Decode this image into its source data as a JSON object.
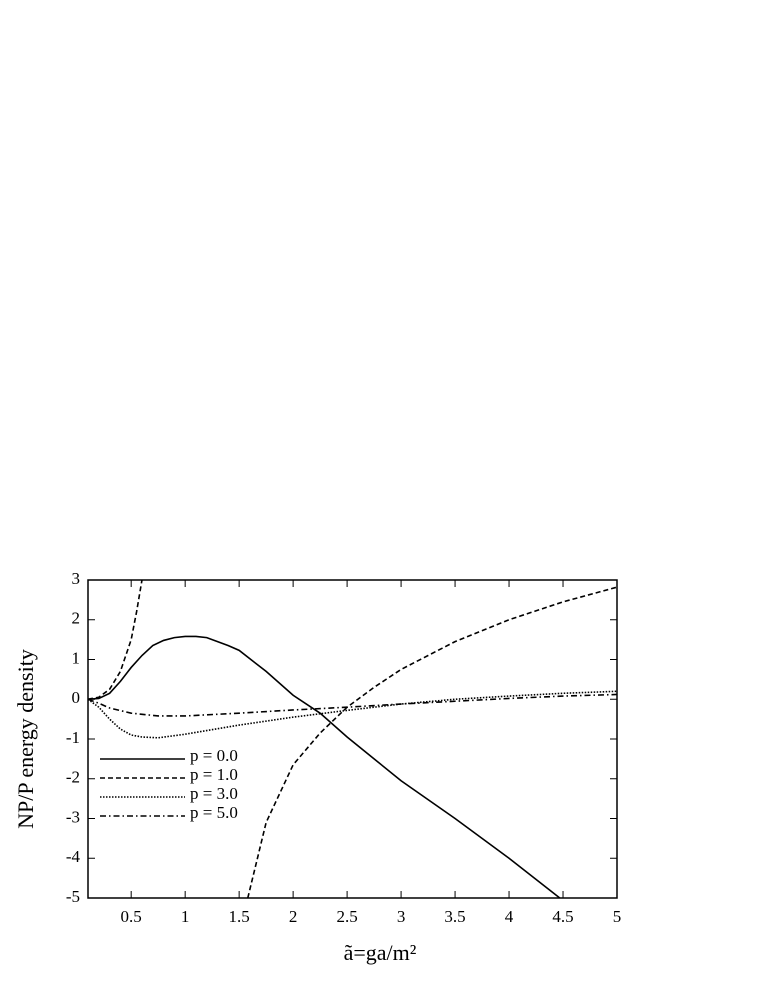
{
  "chart_data": {
    "type": "line",
    "xlabel": "ã=ga/m²",
    "ylabel": "NP/P energy density",
    "xlim": [
      0.1,
      5
    ],
    "ylim": [
      -5,
      3
    ],
    "xticks": [
      0.5,
      1,
      1.5,
      2,
      2.5,
      3,
      3.5,
      4,
      4.5,
      5
    ],
    "yticks": [
      -5,
      -4,
      -3,
      -2,
      -1,
      0,
      1,
      2,
      3
    ],
    "legend": "lower-left",
    "series": [
      {
        "name": "p = 0.0",
        "color": "#000000",
        "dash": "solid",
        "x": [
          0.1,
          0.2,
          0.3,
          0.4,
          0.5,
          0.6,
          0.7,
          0.8,
          0.9,
          1.0,
          1.1,
          1.2,
          1.3,
          1.4,
          1.5,
          1.75,
          2.0,
          2.25,
          2.5,
          2.75,
          3.0,
          3.5,
          4.0,
          4.47
        ],
        "values": [
          0,
          0.02,
          0.15,
          0.45,
          0.8,
          1.1,
          1.35,
          1.48,
          1.55,
          1.58,
          1.58,
          1.55,
          1.45,
          1.35,
          1.23,
          0.7,
          0.1,
          -0.35,
          -0.95,
          -1.5,
          -2.05,
          -3.0,
          -4.0,
          -5.0
        ]
      },
      {
        "name": "p = 1.0",
        "color": "#000000",
        "dash": "dashed",
        "x": [
          0.1,
          0.2,
          0.3,
          0.4,
          0.5,
          0.55,
          0.6,
          null,
          1.58,
          1.75,
          2.0,
          2.25,
          2.5,
          2.75,
          3.0,
          3.5,
          4.0,
          4.5,
          5.0
        ],
        "values": [
          0,
          0.05,
          0.25,
          0.7,
          1.5,
          2.2,
          3.0,
          null,
          -5.0,
          -3.1,
          -1.65,
          -0.85,
          -0.2,
          0.3,
          0.75,
          1.45,
          2.0,
          2.45,
          2.82
        ]
      },
      {
        "name": "p = 3.0",
        "color": "#000000",
        "dash": "dotted",
        "x": [
          0.1,
          0.2,
          0.3,
          0.4,
          0.5,
          0.6,
          0.75,
          1.0,
          1.5,
          2.0,
          2.5,
          3.0,
          3.5,
          4.0,
          4.5,
          5.0
        ],
        "values": [
          0,
          -0.2,
          -0.5,
          -0.75,
          -0.9,
          -0.95,
          -0.97,
          -0.88,
          -0.65,
          -0.45,
          -0.28,
          -0.12,
          0.0,
          0.08,
          0.15,
          0.2
        ]
      },
      {
        "name": "p = 5.0",
        "color": "#000000",
        "dash": "dashdot",
        "x": [
          0.1,
          0.2,
          0.3,
          0.5,
          0.75,
          1.0,
          1.5,
          2.0,
          2.5,
          3.0,
          3.5,
          4.0,
          4.5,
          5.0
        ],
        "values": [
          0,
          -0.1,
          -0.22,
          -0.35,
          -0.42,
          -0.42,
          -0.35,
          -0.27,
          -0.2,
          -0.12,
          -0.05,
          0.02,
          0.08,
          0.12
        ]
      }
    ]
  }
}
